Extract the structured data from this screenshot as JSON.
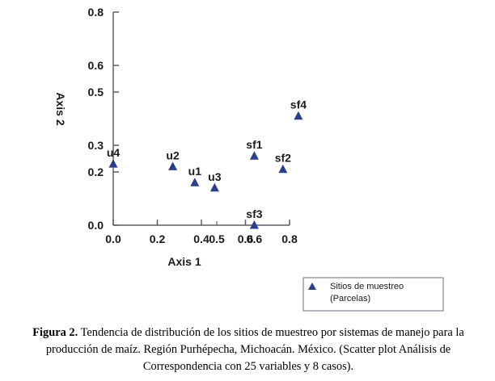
{
  "chart_data": {
    "type": "scatter",
    "title": "",
    "xlabel": "Axis 1",
    "ylabel": "Axis 2",
    "xlim": [
      0,
      0.8
    ],
    "ylim": [
      0,
      0.8
    ],
    "x_ticks": [
      "0.0",
      "0.2",
      "0.4",
      "0.6",
      "0.8"
    ],
    "x_tick_values": [
      0,
      0.2,
      0.4,
      0.6,
      0.8
    ],
    "x_minor_labels": [
      "0.5",
      "0.6"
    ],
    "x_minor_values": [
      0.47,
      0.64
    ],
    "y_ticks": [
      "0.0",
      "0.2",
      "0.3",
      "0.5",
      "0.6",
      "0.8"
    ],
    "y_tick_values": [
      0,
      0.2,
      0.3,
      0.5,
      0.6,
      0.8
    ],
    "grid": false,
    "marker": "triangle",
    "marker_color": "#2a3f8a",
    "points": [
      {
        "label": "u4",
        "x": 0.0,
        "y": 0.23
      },
      {
        "label": "u2",
        "x": 0.27,
        "y": 0.22
      },
      {
        "label": "u1",
        "x": 0.37,
        "y": 0.16
      },
      {
        "label": "u3",
        "x": 0.46,
        "y": 0.14
      },
      {
        "label": "sf1",
        "x": 0.64,
        "y": 0.26
      },
      {
        "label": "sf2",
        "x": 0.77,
        "y": 0.21
      },
      {
        "label": "sf3",
        "x": 0.64,
        "y": 0.0
      },
      {
        "label": "sf4",
        "x": 0.84,
        "y": 0.41
      }
    ],
    "legend": {
      "position": "bottom-right",
      "line1": "Sitios de muestreo",
      "line2": "(Parcelas)"
    }
  },
  "caption": {
    "label": "Figura 2.",
    "text": "Tendencia de distribución de los sitios de muestreo por sistemas de manejo para la producción de maíz. Región Purhépecha, Michoacán. México. (Scatter plot Análisis de Correspondencia con 25 variables y 8 casos)."
  }
}
